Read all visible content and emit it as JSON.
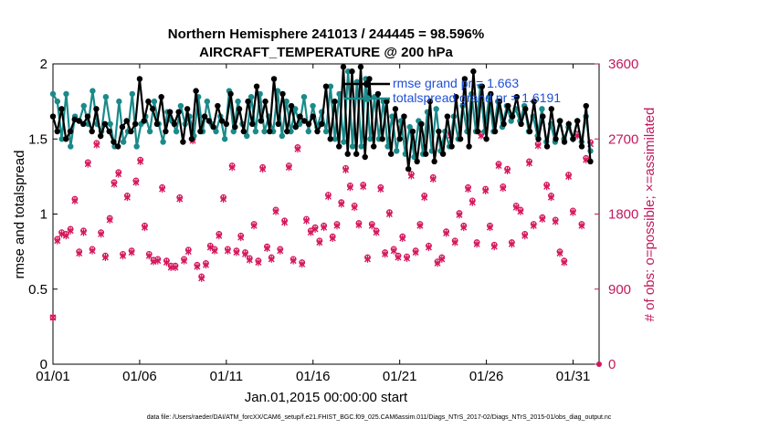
{
  "chart_data": {
    "type": "line",
    "title_line1": "Northern Hemisphere 241013 / 244445 = 98.596%",
    "title_line2": "AIRCRAFT_TEMPERATURE @ 200 hPa",
    "xlabel": "Jan.01,2015 00:00:00 start",
    "ylabel_left": "rmse and totalspread",
    "ylabel_right": "# of obs: o=possible; ×=assimilated",
    "footer": "data file: /Users/raeder/DAI/ATM_forcXX/CAM6_setup/f.e21.FHIST_BGC.f09_025.CAM6assim.011/Diags_NTrS_2017-02/Diags_NTrS_2015-01/obs_diag_output.nc",
    "x_ticks": [
      "01/01",
      "01/06",
      "01/11",
      "01/16",
      "01/21",
      "01/26",
      "01/31"
    ],
    "x_tick_days": [
      0,
      5,
      10,
      15,
      20,
      25,
      30
    ],
    "xlim": [
      0,
      31.5
    ],
    "y_left_ticks": [
      "0",
      "0.5",
      "1",
      "1.5",
      "2"
    ],
    "y_left_tick_values": [
      0,
      0.5,
      1,
      1.5,
      2
    ],
    "ylim_left": [
      0,
      2
    ],
    "y_right_ticks": [
      "0",
      "900",
      "1800",
      "2700",
      "3600"
    ],
    "y_right_tick_values": [
      0,
      900,
      1800,
      2700,
      3600
    ],
    "ylim_right": [
      0,
      3600
    ],
    "colors": {
      "rmse": "#000000",
      "spread": "#1a8a8a",
      "obs": "#d4145a",
      "legend_text": "#1f4fd6",
      "right_axis": "#c2185b"
    },
    "series": [
      {
        "name": "rmse grand pr = 1.663",
        "legend": "rmse grand pr = 1.663",
        "values": [
          1.65,
          1.55,
          1.7,
          1.5,
          1.55,
          1.63,
          1.62,
          1.6,
          1.65,
          1.55,
          1.7,
          1.52,
          1.6,
          1.55,
          1.48,
          1.45,
          1.58,
          1.62,
          1.55,
          1.6,
          1.9,
          1.62,
          1.75,
          1.7,
          1.6,
          1.78,
          1.55,
          1.68,
          1.6,
          1.68,
          1.48,
          1.7,
          1.5,
          1.82,
          1.55,
          1.65,
          1.62,
          1.58,
          1.72,
          1.62,
          1.6,
          1.8,
          1.58,
          1.7,
          1.55,
          1.75,
          1.6,
          1.85,
          1.62,
          1.75,
          1.55,
          1.9,
          1.6,
          1.8,
          1.55,
          1.72,
          1.58,
          1.65,
          1.62,
          1.6,
          1.65,
          1.55,
          1.6,
          1.85,
          1.5,
          1.75,
          1.45,
          1.98,
          1.4,
          1.95,
          1.4,
          1.98,
          1.38,
          1.9,
          1.45,
          1.8,
          1.5,
          1.75,
          1.4,
          1.7,
          1.5,
          1.65,
          1.3,
          1.55,
          1.35,
          1.6,
          1.4,
          1.75,
          1.35,
          1.55,
          1.4,
          1.65,
          1.45,
          1.78,
          1.5,
          1.9,
          1.45,
          1.95,
          1.55,
          1.85,
          1.5,
          1.8,
          1.55,
          1.75,
          1.6,
          1.72,
          1.65,
          1.78,
          1.6,
          1.7,
          1.55,
          1.75,
          1.5,
          1.65,
          1.45,
          1.7,
          1.5,
          1.62,
          1.48,
          1.6,
          1.5,
          1.62,
          1.45,
          1.72,
          1.35
        ],
        "style": "black-hex"
      },
      {
        "name": "totalspread grand pr = 1.6191",
        "legend": "totalspread grand pr = 1.6191",
        "values": [
          1.8,
          1.75,
          1.5,
          1.8,
          1.45,
          1.65,
          1.62,
          1.72,
          1.6,
          1.82,
          1.6,
          1.55,
          1.78,
          1.6,
          1.45,
          1.75,
          1.48,
          1.55,
          1.8,
          1.45,
          1.6,
          1.65,
          1.55,
          1.75,
          1.6,
          1.48,
          1.68,
          1.62,
          1.55,
          1.72,
          1.6,
          1.65,
          1.52,
          1.78,
          1.55,
          1.75,
          1.6,
          1.55,
          1.65,
          1.5,
          1.82,
          1.55,
          1.75,
          1.6,
          1.52,
          1.78,
          1.55,
          1.8,
          1.55,
          1.65,
          1.55,
          1.82,
          1.52,
          1.75,
          1.55,
          1.7,
          1.6,
          1.78,
          1.55,
          1.72,
          1.58,
          1.68,
          1.55,
          1.85,
          1.5,
          1.8,
          1.48,
          1.95,
          1.45,
          1.88,
          1.45,
          1.9,
          1.5,
          1.78,
          1.5,
          1.75,
          1.45,
          1.65,
          1.42,
          1.62,
          1.4,
          1.58,
          1.38,
          1.62,
          1.4,
          1.68,
          1.42,
          1.7,
          1.42,
          1.55,
          1.45,
          1.65,
          1.5,
          1.72,
          1.55,
          1.8,
          1.55,
          1.85,
          1.55,
          1.78,
          1.55,
          1.75,
          1.58,
          1.72,
          1.62,
          1.7,
          1.62,
          1.72,
          1.55,
          1.65,
          1.52,
          1.7,
          1.48,
          1.6,
          1.48,
          1.62,
          1.5,
          1.58,
          1.5,
          1.62,
          1.48,
          1.65,
          1.42
        ],
        "style": "teal-hex"
      }
    ],
    "obs_possible": [
      560,
      1500,
      1580,
      1560,
      1620,
      1980,
      1350,
      1600,
      2420,
      1380,
      2650,
      1580,
      1300,
      1750,
      2180,
      2300,
      1320,
      2020,
      1360,
      2200,
      2450,
      1660,
      1320,
      1250,
      1260,
      2120,
      1240,
      1180,
      1180,
      2000,
      1260,
      1370,
      2700,
      1190,
      1050,
      1210,
      1420,
      1380,
      1560,
      2000,
      1380,
      2380,
      1360,
      1540,
      1340,
      1270,
      1680,
      1240,
      2360,
      1410,
      1280,
      1850,
      1380,
      1720,
      2380,
      1260,
      2600,
      1220,
      1740,
      1600,
      1640,
      1480,
      1660,
      2030,
      1530,
      1680,
      1940,
      2350,
      2140,
      1900,
      1690,
      2150,
      1280,
      1680,
      1600,
      2120,
      1340,
      1820,
      1380,
      1300,
      1530,
      1290,
      2280,
      1360,
      1680,
      2020,
      1420,
      2240,
      1230,
      1280,
      1590,
      2760,
      1480,
      1810,
      1660,
      2120,
      1960,
      1460,
      2760,
      2100,
      1660,
      1430,
      2400,
      2130,
      2340,
      1460,
      1900,
      1850,
      1560,
      2430,
      1680,
      2640,
      1760,
      2150,
      2020,
      1730,
      1350,
      1240,
      2270,
      1840,
      2760,
      1680,
      2470,
      2660
    ],
    "obs_assimilated": [
      560,
      1480,
      1560,
      1540,
      1600,
      1960,
      1330,
      1580,
      2400,
      1360,
      2630,
      1560,
      1280,
      1730,
      2160,
      2280,
      1300,
      2000,
      1340,
      2180,
      2430,
      1640,
      1300,
      1230,
      1240,
      2100,
      1220,
      1160,
      1160,
      1980,
      1240,
      1350,
      2680,
      1170,
      1030,
      1190,
      1400,
      1360,
      1540,
      1980,
      1360,
      2360,
      1340,
      1520,
      1320,
      1250,
      1660,
      1220,
      2340,
      1390,
      1260,
      1830,
      1360,
      1700,
      2360,
      1240,
      2580,
      1200,
      1720,
      1580,
      1620,
      1460,
      1640,
      2010,
      1510,
      1660,
      1920,
      2330,
      2120,
      1880,
      1670,
      2130,
      1260,
      1660,
      1580,
      2100,
      1320,
      1800,
      1360,
      1280,
      1510,
      1270,
      2260,
      1340,
      1660,
      2000,
      1400,
      2220,
      1210,
      1260,
      1570,
      2740,
      1460,
      1790,
      1640,
      2100,
      1940,
      1440,
      2740,
      2080,
      1640,
      1410,
      2380,
      2110,
      2320,
      1440,
      1880,
      1830,
      1540,
      2410,
      1660,
      2620,
      1740,
      2130,
      2000,
      1710,
      1330,
      1220,
      2250,
      1820,
      2740,
      1660,
      2450,
      2640
    ]
  }
}
